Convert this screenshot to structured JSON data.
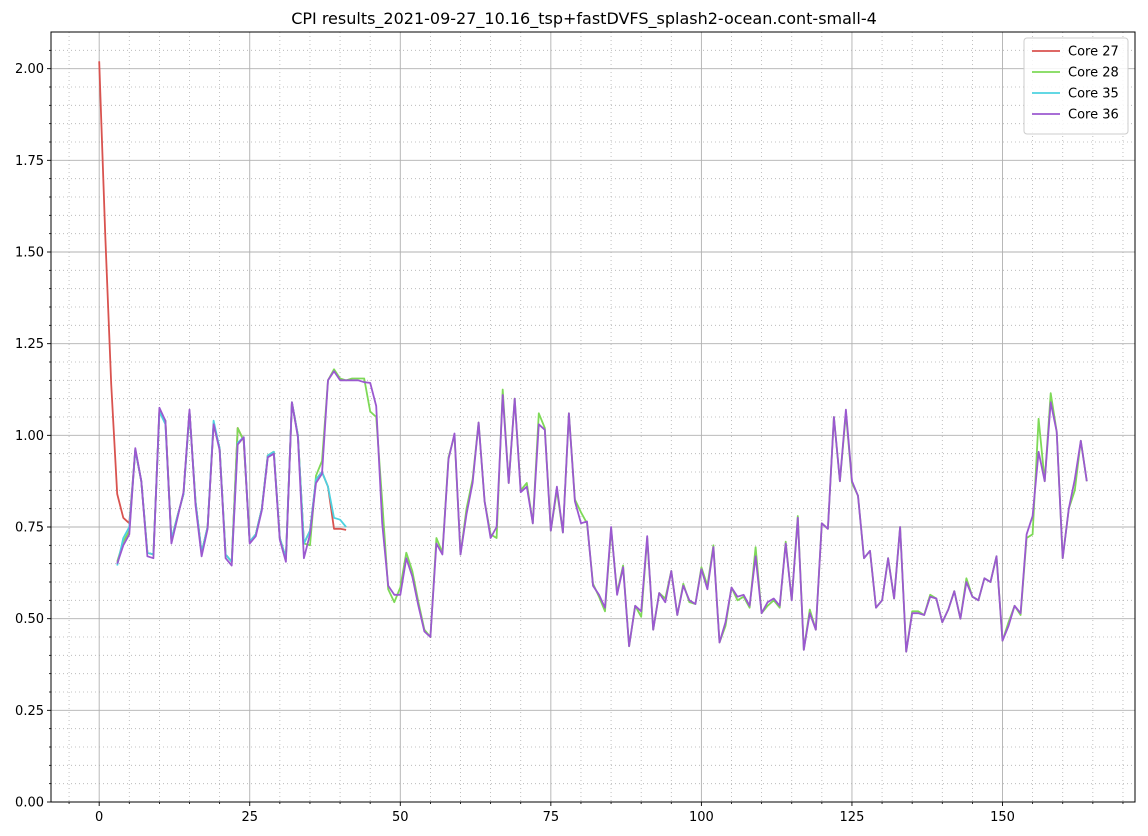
{
  "chart_data": {
    "type": "line",
    "title": "CPI results_2021-09-27_10.16_tsp+fastDVFS_splash2-ocean.cont-small-4",
    "xlabel": "",
    "ylabel": "",
    "xlim": [
      -8,
      172
    ],
    "ylim": [
      0,
      2.1
    ],
    "x_ticks": [
      0,
      25,
      50,
      75,
      100,
      125,
      150
    ],
    "x_tick_labels": [
      "0",
      "25",
      "50",
      "75",
      "100",
      "125",
      "150"
    ],
    "y_ticks": [
      0,
      0.25,
      0.5,
      0.75,
      1.0,
      1.25,
      1.5,
      1.75,
      2.0
    ],
    "y_tick_labels": [
      "0.00",
      "0.25",
      "0.50",
      "0.75",
      "1.00",
      "1.25",
      "1.50",
      "1.75",
      "2.00"
    ],
    "grid": "major solid, minor dotted",
    "legend_position": "top-right",
    "series": [
      {
        "name": "Core 27",
        "color": "#d9534f",
        "x_start": 0,
        "values": [
          2.02,
          1.55,
          1.14,
          0.84,
          0.775,
          0.76,
          0.96,
          0.875,
          0.68,
          0.675,
          1.065,
          1.04,
          0.715,
          0.78,
          0.84,
          1.065,
          0.82,
          0.68,
          0.75,
          1.03,
          0.965,
          0.675,
          0.655,
          1.02,
          0.985,
          0.71,
          0.73,
          0.8,
          0.945,
          0.955,
          0.72,
          0.665,
          1.09,
          1.0,
          0.705,
          0.74,
          0.88,
          0.9,
          0.86,
          0.745,
          0.745,
          0.742
        ]
      },
      {
        "name": "Core 28",
        "color": "#7ed957",
        "x_start": 3,
        "values": [
          0.655,
          0.71,
          0.74,
          0.96,
          0.875,
          0.68,
          0.675,
          1.065,
          1.04,
          0.715,
          0.78,
          0.84,
          1.065,
          0.82,
          0.68,
          0.75,
          1.03,
          0.965,
          0.675,
          0.655,
          1.02,
          0.985,
          0.71,
          0.73,
          0.8,
          0.945,
          0.955,
          0.72,
          0.665,
          1.09,
          1.0,
          0.705,
          0.7,
          0.89,
          0.93,
          1.15,
          1.18,
          1.155,
          1.15,
          1.155,
          1.155,
          1.155,
          1.065,
          1.05,
          0.82,
          0.58,
          0.545,
          0.585,
          0.68,
          0.63,
          0.545,
          0.47,
          0.45,
          0.72,
          0.68,
          0.94,
          1.0,
          0.675,
          0.8,
          0.88,
          1.035,
          0.82,
          0.73,
          0.72,
          1.125,
          0.87,
          1.1,
          0.85,
          0.87,
          0.76,
          1.06,
          1.02,
          0.74,
          0.85,
          0.735,
          1.06,
          0.825,
          0.79,
          0.76,
          0.595,
          0.56,
          0.52,
          0.745,
          0.57,
          0.645,
          0.425,
          0.535,
          0.505,
          0.72,
          0.47,
          0.57,
          0.555,
          0.63,
          0.51,
          0.595,
          0.545,
          0.54,
          0.64,
          0.59,
          0.7,
          0.435,
          0.48,
          0.585,
          0.55,
          0.56,
          0.53,
          0.695,
          0.515,
          0.535,
          0.55,
          0.53,
          0.71,
          0.55,
          0.78,
          0.415,
          0.525,
          0.47,
          0.76,
          0.745,
          1.05,
          0.875,
          1.06,
          0.87,
          0.835,
          0.665,
          0.685,
          0.53,
          0.55,
          0.665,
          0.555,
          0.75,
          0.41,
          0.52,
          0.52,
          0.51,
          0.565,
          0.555,
          0.49,
          0.525,
          0.575,
          0.5,
          0.61,
          0.56,
          0.55,
          0.61,
          0.6,
          0.67,
          0.44,
          0.49,
          0.535,
          0.51,
          0.72,
          0.73,
          1.045,
          0.875,
          1.115,
          1.01,
          0.665,
          0.8,
          0.85,
          0.985,
          0.875
        ]
      },
      {
        "name": "Core 35",
        "color": "#4dd2e0",
        "x_start": 3,
        "values": [
          0.645,
          0.72,
          0.75,
          0.96,
          0.875,
          0.68,
          0.675,
          1.065,
          1.03,
          0.715,
          0.78,
          0.84,
          1.065,
          0.82,
          0.68,
          0.75,
          1.04,
          0.965,
          0.675,
          0.655,
          0.98,
          0.995,
          0.71,
          0.73,
          0.8,
          0.945,
          0.955,
          0.72,
          0.665,
          1.09,
          1.0,
          0.705,
          0.74,
          0.88,
          0.9,
          0.86,
          0.775,
          0.77,
          0.75
        ]
      },
      {
        "name": "Core 36",
        "color": "#9b59d0",
        "x_start": 3,
        "values": [
          0.65,
          0.7,
          0.73,
          0.965,
          0.875,
          0.67,
          0.665,
          1.075,
          1.04,
          0.705,
          0.775,
          0.845,
          1.07,
          0.81,
          0.67,
          0.745,
          1.03,
          0.96,
          0.665,
          0.645,
          0.975,
          0.995,
          0.705,
          0.725,
          0.795,
          0.94,
          0.95,
          0.715,
          0.655,
          1.09,
          0.995,
          0.665,
          0.73,
          0.87,
          0.895,
          1.15,
          1.175,
          1.15,
          1.15,
          1.15,
          1.15,
          1.145,
          1.143,
          1.08,
          0.76,
          0.59,
          0.565,
          0.565,
          0.665,
          0.615,
          0.535,
          0.465,
          0.45,
          0.705,
          0.675,
          0.935,
          1.005,
          0.675,
          0.785,
          0.87,
          1.035,
          0.82,
          0.72,
          0.75,
          1.11,
          0.87,
          1.1,
          0.845,
          0.86,
          0.76,
          1.03,
          1.015,
          0.74,
          0.86,
          0.735,
          1.06,
          0.82,
          0.76,
          0.765,
          0.59,
          0.565,
          0.53,
          0.75,
          0.565,
          0.64,
          0.425,
          0.535,
          0.52,
          0.725,
          0.47,
          0.57,
          0.545,
          0.63,
          0.51,
          0.59,
          0.55,
          0.54,
          0.635,
          0.58,
          0.695,
          0.435,
          0.49,
          0.585,
          0.56,
          0.565,
          0.535,
          0.67,
          0.515,
          0.545,
          0.555,
          0.535,
          0.705,
          0.55,
          0.775,
          0.415,
          0.515,
          0.47,
          0.76,
          0.745,
          1.05,
          0.875,
          1.07,
          0.875,
          0.835,
          0.665,
          0.685,
          0.53,
          0.55,
          0.665,
          0.555,
          0.75,
          0.41,
          0.515,
          0.515,
          0.51,
          0.56,
          0.555,
          0.49,
          0.525,
          0.575,
          0.5,
          0.6,
          0.56,
          0.55,
          0.61,
          0.6,
          0.67,
          0.44,
          0.48,
          0.535,
          0.515,
          0.73,
          0.78,
          0.955,
          0.875,
          1.09,
          1.01,
          0.665,
          0.8,
          0.88,
          0.985,
          0.875
        ]
      }
    ]
  }
}
